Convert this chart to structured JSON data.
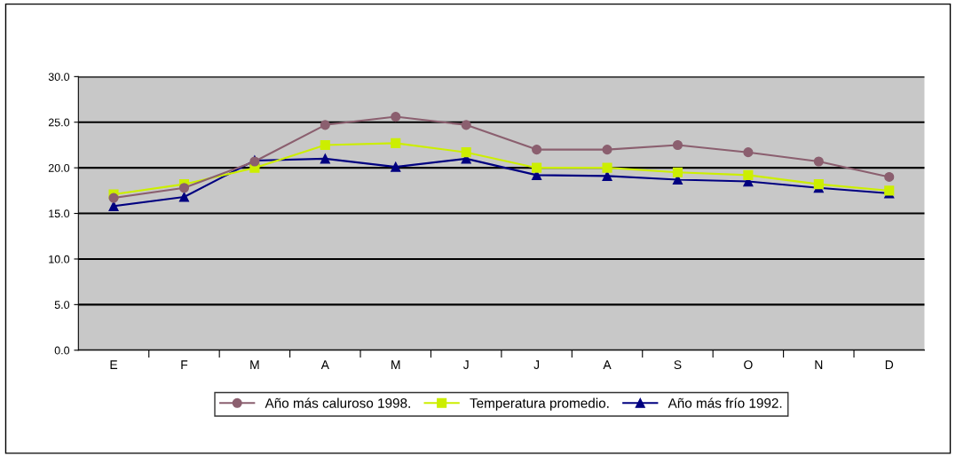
{
  "chart_data": {
    "type": "line",
    "categories": [
      "E",
      "F",
      "M",
      "A",
      "M",
      "J",
      "J",
      "A",
      "S",
      "O",
      "N",
      "D"
    ],
    "series": [
      {
        "name": "Año más caluroso 1998.",
        "color": "#8b5f6f",
        "marker": "circle",
        "values": [
          16.7,
          17.8,
          20.7,
          24.7,
          25.6,
          24.7,
          22.0,
          22.0,
          22.5,
          21.7,
          20.7,
          19.0
        ]
      },
      {
        "name": "Temperatura promedio.",
        "color": "#ccee00",
        "marker": "square",
        "values": [
          17.1,
          18.2,
          20.0,
          22.5,
          22.7,
          21.7,
          20.0,
          20.0,
          19.5,
          19.2,
          18.2,
          17.5
        ]
      },
      {
        "name": "Año más frío 1992.",
        "color": "#000080",
        "marker": "triangle",
        "values": [
          15.8,
          16.8,
          20.8,
          21.0,
          20.1,
          21.0,
          19.2,
          19.1,
          18.7,
          18.5,
          17.8,
          17.2
        ]
      }
    ],
    "ylim": [
      0,
      30
    ],
    "yticks": [
      {
        "value": 0,
        "label": "0.0"
      },
      {
        "value": 5,
        "label": "5.0"
      },
      {
        "value": 10,
        "label": "10.0"
      },
      {
        "value": 15,
        "label": "15.0"
      },
      {
        "value": 20,
        "label": "20.0"
      },
      {
        "value": 25,
        "label": "25.0"
      },
      {
        "value": 30,
        "label": "30.0"
      }
    ],
    "grid": "y",
    "legend": "bottom",
    "line_style": "solid"
  }
}
